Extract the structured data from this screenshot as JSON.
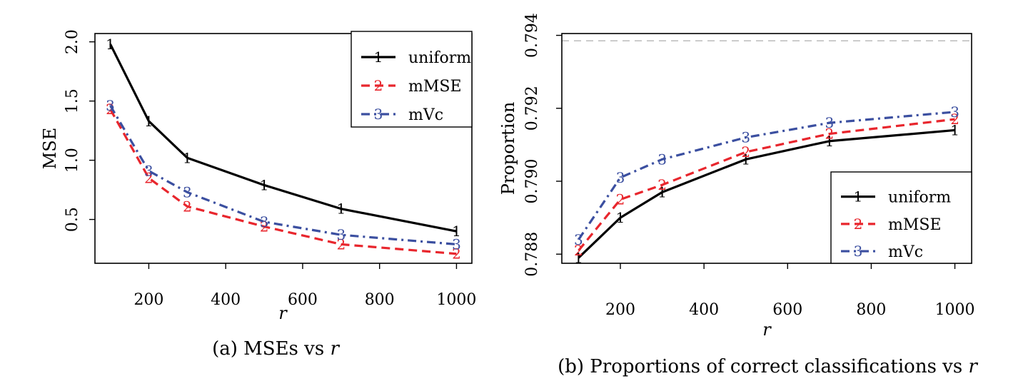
{
  "colors": {
    "uniform": "#000000",
    "mMSE": "#e8262d",
    "mVc": "#3b4fa0",
    "reference": "#c0c0c0"
  },
  "chart_data": [
    {
      "type": "line",
      "title": "",
      "caption": "(a) MSEs vs ",
      "caption_var": "r",
      "xlabel": "r",
      "ylabel": "MSE",
      "x": [
        100,
        200,
        300,
        500,
        700,
        1000
      ],
      "xticks": [
        "200",
        "400",
        "600",
        "800",
        "1000"
      ],
      "xtick_values": [
        200,
        400,
        600,
        800,
        1000
      ],
      "yticks": [
        "0.5",
        "1.0",
        "1.5",
        "2.0"
      ],
      "ytick_values": [
        0.5,
        1.0,
        1.5,
        2.0
      ],
      "xlim": [
        60,
        1040
      ],
      "ylim": [
        0.13,
        2.07
      ],
      "legend_position": "top-right",
      "series": [
        {
          "name": "uniform",
          "marker": "1",
          "style": "solid",
          "values": [
            1.98,
            1.33,
            1.02,
            0.79,
            0.59,
            0.4
          ]
        },
        {
          "name": "mMSE",
          "marker": "2",
          "style": "dashed",
          "values": [
            1.43,
            0.85,
            0.61,
            0.44,
            0.29,
            0.21
          ]
        },
        {
          "name": "mVc",
          "marker": "3",
          "style": "dashdot",
          "values": [
            1.46,
            0.91,
            0.73,
            0.48,
            0.37,
            0.29
          ]
        }
      ]
    },
    {
      "type": "line",
      "title": "",
      "caption": "(b) Proportions of correct classifications vs ",
      "caption_var": "r",
      "xlabel": "r",
      "ylabel": "Proportion",
      "x": [
        100,
        200,
        300,
        500,
        700,
        1000
      ],
      "xticks": [
        "200",
        "400",
        "600",
        "800",
        "1000"
      ],
      "xtick_values": [
        200,
        400,
        600,
        800,
        1000
      ],
      "yticks": [
        "0.788",
        "0.790",
        "0.792",
        "0.794"
      ],
      "ytick_values": [
        0.788,
        0.79,
        0.792,
        0.794
      ],
      "xlim": [
        60,
        1040
      ],
      "ylim": [
        0.78775,
        0.79405
      ],
      "reference_line": 0.79385,
      "legend_position": "bottom-right",
      "series": [
        {
          "name": "uniform",
          "marker": "1",
          "style": "solid",
          "values": [
            0.7879,
            0.789,
            0.7897,
            0.7906,
            0.7911,
            0.7914
          ]
        },
        {
          "name": "mMSE",
          "marker": "2",
          "style": "dashed",
          "values": [
            0.7881,
            0.7895,
            0.7899,
            0.7908,
            0.7913,
            0.7917
          ]
        },
        {
          "name": "mVc",
          "marker": "3",
          "style": "dashdot",
          "values": [
            0.7884,
            0.7901,
            0.7906,
            0.7912,
            0.7916,
            0.7919
          ]
        }
      ]
    }
  ]
}
